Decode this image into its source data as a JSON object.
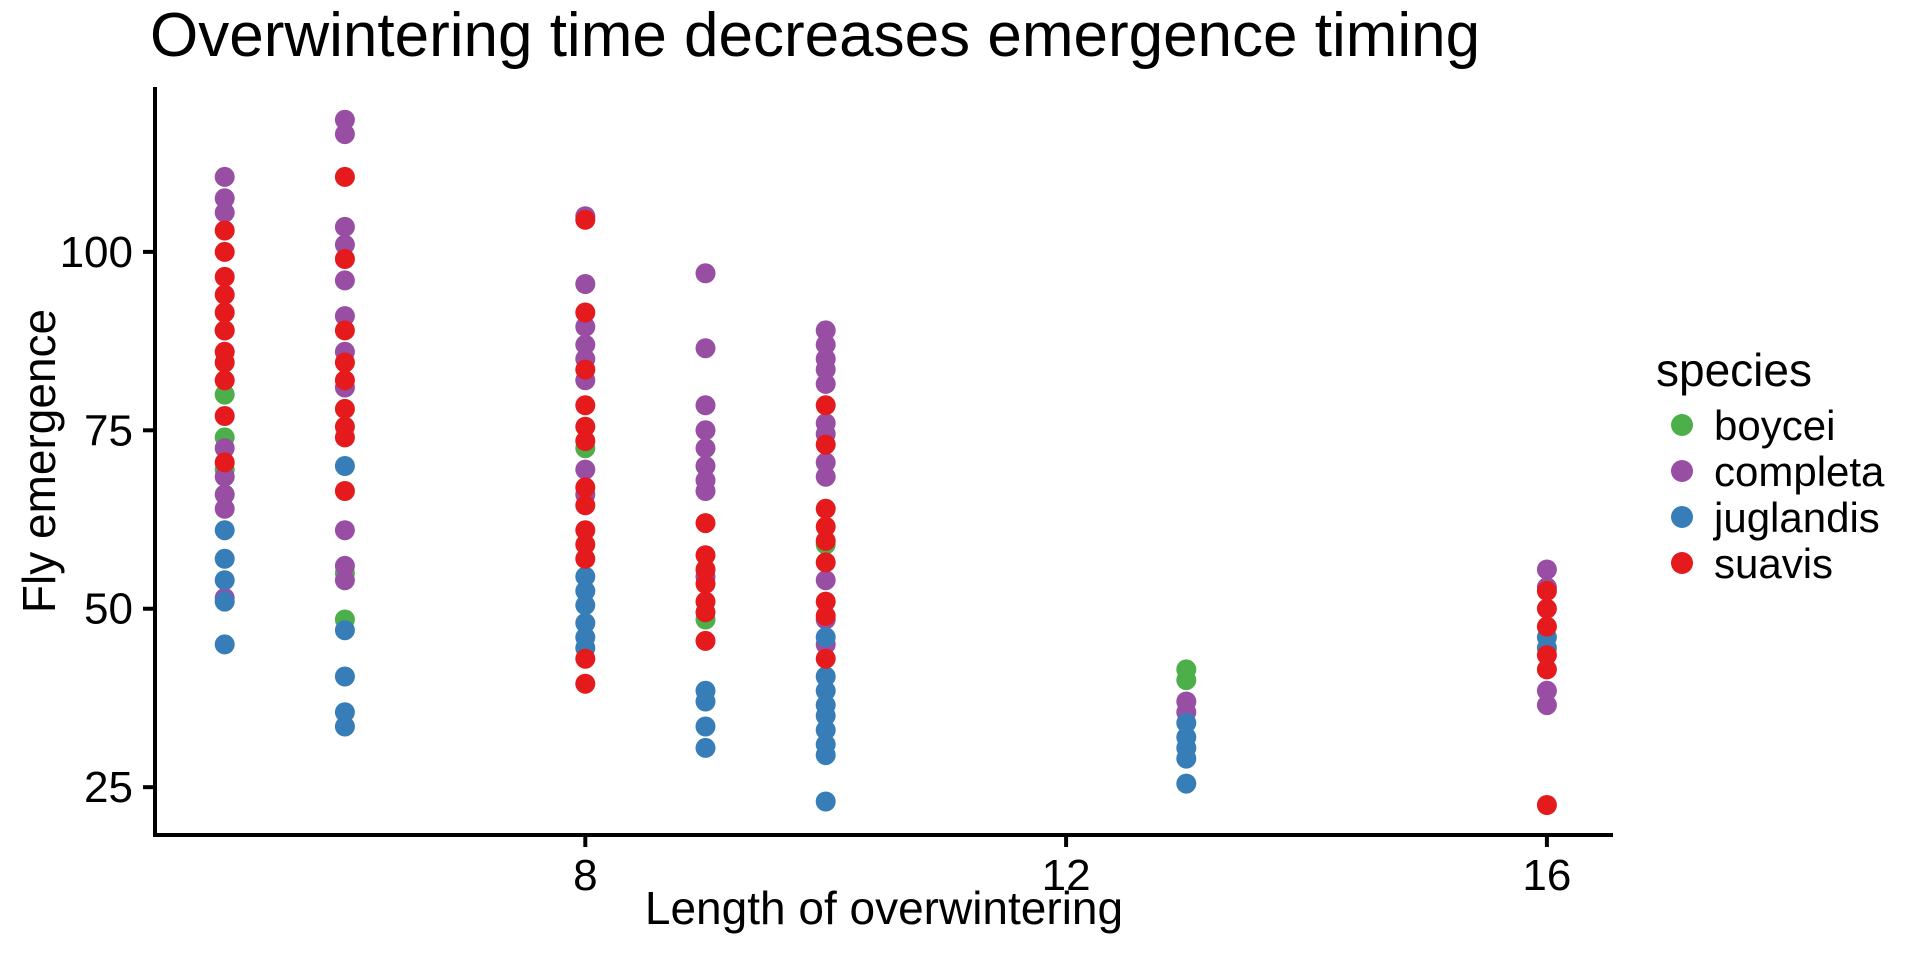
{
  "page": {
    "background": "#ffffff",
    "text_color": "#000000"
  },
  "chart_data": {
    "type": "scatter",
    "title": "Overwintering time decreases emergence timing",
    "xlabel": "Length of overwintering",
    "ylabel": "Fly emergence",
    "x_ticks": [
      8,
      12,
      16
    ],
    "y_ticks": [
      25,
      50,
      75,
      100
    ],
    "xlim": [
      4.42,
      16.55
    ],
    "ylim": [
      18.3,
      123.1
    ],
    "grid": "off",
    "point_radius": 10,
    "legend": {
      "title": "species",
      "position": "right"
    },
    "series": [
      {
        "name": "boycei",
        "color": "#4DAF4A",
        "points": [
          [
            5,
            80
          ],
          [
            5,
            74
          ],
          [
            5,
            69.5
          ],
          [
            6,
            55
          ],
          [
            6,
            48.5
          ],
          [
            8,
            72.5
          ],
          [
            9,
            48.5
          ],
          [
            10,
            59
          ],
          [
            13,
            41.5
          ],
          [
            13,
            40
          ]
        ]
      },
      {
        "name": "completa",
        "color": "#984EA3",
        "points": [
          [
            5,
            110.5
          ],
          [
            5,
            107.5
          ],
          [
            5,
            105.5
          ],
          [
            5,
            89
          ],
          [
            5,
            72.5
          ],
          [
            5,
            68.5
          ],
          [
            5,
            66
          ],
          [
            5,
            64
          ],
          [
            5,
            51.5
          ],
          [
            6,
            118.5
          ],
          [
            6,
            116.5
          ],
          [
            6,
            103.5
          ],
          [
            6,
            101
          ],
          [
            6,
            96
          ],
          [
            6,
            91
          ],
          [
            6,
            86
          ],
          [
            6,
            81
          ],
          [
            6,
            61
          ],
          [
            6,
            56
          ],
          [
            6,
            54
          ],
          [
            8,
            105
          ],
          [
            8,
            95.5
          ],
          [
            8,
            89.5
          ],
          [
            8,
            87
          ],
          [
            8,
            85
          ],
          [
            8,
            82
          ],
          [
            8,
            69.5
          ],
          [
            8,
            66
          ],
          [
            9,
            97
          ],
          [
            9,
            86.5
          ],
          [
            9,
            78.5
          ],
          [
            9,
            75
          ],
          [
            9,
            72.5
          ],
          [
            9,
            70
          ],
          [
            9,
            68
          ],
          [
            9,
            66.5
          ],
          [
            9,
            54.5
          ],
          [
            10,
            89
          ],
          [
            10,
            87
          ],
          [
            10,
            85
          ],
          [
            10,
            83.5
          ],
          [
            10,
            81.5
          ],
          [
            10,
            76
          ],
          [
            10,
            74.5
          ],
          [
            10,
            70.5
          ],
          [
            10,
            68.5
          ],
          [
            10,
            54
          ],
          [
            10,
            48.5
          ],
          [
            10,
            45
          ],
          [
            13,
            37
          ],
          [
            13,
            35.5
          ],
          [
            16,
            55.5
          ],
          [
            16,
            53
          ],
          [
            16,
            38.5
          ],
          [
            16,
            36.5
          ]
        ]
      },
      {
        "name": "juglandis",
        "color": "#377EB8",
        "points": [
          [
            5,
            61
          ],
          [
            5,
            57
          ],
          [
            5,
            54
          ],
          [
            5,
            51
          ],
          [
            5,
            45
          ],
          [
            6,
            70
          ],
          [
            6,
            47
          ],
          [
            6,
            40.5
          ],
          [
            6,
            35.5
          ],
          [
            6,
            33.5
          ],
          [
            8,
            54.5
          ],
          [
            8,
            52.5
          ],
          [
            8,
            50.5
          ],
          [
            8,
            48
          ],
          [
            8,
            46
          ],
          [
            8,
            44.5
          ],
          [
            9,
            38.5
          ],
          [
            9,
            37
          ],
          [
            9,
            33.5
          ],
          [
            9,
            30.5
          ],
          [
            10,
            46
          ],
          [
            10,
            40.5
          ],
          [
            10,
            38.5
          ],
          [
            10,
            36.5
          ],
          [
            10,
            35
          ],
          [
            10,
            33
          ],
          [
            10,
            31
          ],
          [
            10,
            29.5
          ],
          [
            10,
            23
          ],
          [
            13,
            34
          ],
          [
            13,
            32
          ],
          [
            13,
            30.5
          ],
          [
            13,
            29
          ],
          [
            13,
            25.5
          ],
          [
            16,
            46
          ],
          [
            16,
            44.5
          ]
        ]
      },
      {
        "name": "suavis",
        "color": "#E41A1C",
        "points": [
          [
            5,
            103
          ],
          [
            5,
            100
          ],
          [
            5,
            96.5
          ],
          [
            5,
            94
          ],
          [
            5,
            91.5
          ],
          [
            5,
            89
          ],
          [
            5,
            86
          ],
          [
            5,
            84.5
          ],
          [
            5,
            82
          ],
          [
            5,
            77
          ],
          [
            5,
            70.5
          ],
          [
            6,
            110.5
          ],
          [
            6,
            99
          ],
          [
            6,
            89
          ],
          [
            6,
            84.5
          ],
          [
            6,
            82
          ],
          [
            6,
            78
          ],
          [
            6,
            75.5
          ],
          [
            6,
            74
          ],
          [
            6,
            66.5
          ],
          [
            8,
            104.5
          ],
          [
            8,
            91.5
          ],
          [
            8,
            83.5
          ],
          [
            8,
            78.5
          ],
          [
            8,
            75.5
          ],
          [
            8,
            73.5
          ],
          [
            8,
            67
          ],
          [
            8,
            64.5
          ],
          [
            8,
            61
          ],
          [
            8,
            59
          ],
          [
            8,
            57
          ],
          [
            8,
            43
          ],
          [
            8,
            39.5
          ],
          [
            9,
            62
          ],
          [
            9,
            57.5
          ],
          [
            9,
            55.5
          ],
          [
            9,
            53.5
          ],
          [
            9,
            51
          ],
          [
            9,
            49.5
          ],
          [
            9,
            45.5
          ],
          [
            10,
            78.5
          ],
          [
            10,
            73
          ],
          [
            10,
            64
          ],
          [
            10,
            61.5
          ],
          [
            10,
            59.5
          ],
          [
            10,
            56.5
          ],
          [
            10,
            51
          ],
          [
            10,
            49
          ],
          [
            10,
            43
          ],
          [
            16,
            52.5
          ],
          [
            16,
            50
          ],
          [
            16,
            47.5
          ],
          [
            16,
            43.5
          ],
          [
            16,
            41.5
          ],
          [
            16,
            22.5
          ]
        ]
      }
    ]
  }
}
